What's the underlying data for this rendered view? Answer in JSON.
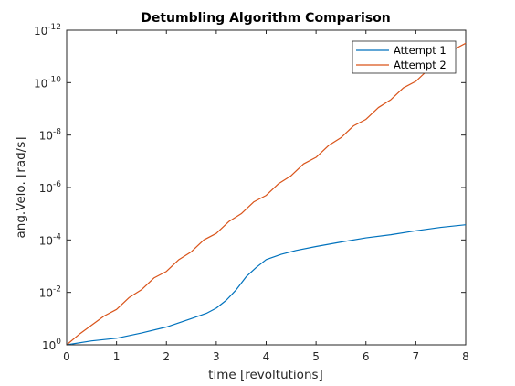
{
  "chart_data": {
    "type": "line",
    "title": "Detumbling Algorithm Comparison",
    "xlabel": "time [revoltutions]",
    "ylabel": "ang.Velo. [rad/s]",
    "xlim": [
      0,
      8
    ],
    "ylim_exp": [
      -12,
      0
    ],
    "yscale": "log",
    "grid": false,
    "legend_position": "top-right",
    "x_ticks": [
      "0",
      "1",
      "2",
      "3",
      "4",
      "5",
      "6",
      "7",
      "8"
    ],
    "y_tick_base": "10",
    "y_tick_exponents": [
      "0",
      "-2",
      "-4",
      "-6",
      "-8",
      "-10",
      "-12"
    ],
    "series": [
      {
        "name": "Attempt 1",
        "color": "#0072bd",
        "x": [
          0,
          0.5,
          1.0,
          1.5,
          2.0,
          2.5,
          2.8,
          3.0,
          3.2,
          3.4,
          3.6,
          3.8,
          4.0,
          4.3,
          4.6,
          5.0,
          5.5,
          6.0,
          6.5,
          7.0,
          7.5,
          8.0
        ],
        "y_exp": [
          0,
          -0.15,
          -0.25,
          -0.45,
          -0.68,
          -1.0,
          -1.2,
          -1.4,
          -1.7,
          -2.1,
          -2.6,
          -2.95,
          -3.25,
          -3.45,
          -3.6,
          -3.75,
          -3.92,
          -4.08,
          -4.2,
          -4.35,
          -4.48,
          -4.58
        ]
      },
      {
        "name": "Attempt 2",
        "color": "#d95319",
        "x": [
          0,
          0.25,
          0.5,
          0.75,
          1.0,
          1.25,
          1.5,
          1.75,
          2.0,
          2.25,
          2.5,
          2.75,
          3.0,
          3.25,
          3.5,
          3.75,
          4.0,
          4.25,
          4.5,
          4.75,
          5.0,
          5.25,
          5.5,
          5.75,
          6.0,
          6.25,
          6.5,
          6.75,
          7.0,
          7.25,
          7.5,
          7.75,
          8.0
        ],
        "y_exp": [
          0,
          -0.4,
          -0.75,
          -1.1,
          -1.35,
          -1.8,
          -2.1,
          -2.55,
          -2.8,
          -3.25,
          -3.55,
          -4.0,
          -4.25,
          -4.7,
          -5.0,
          -5.45,
          -5.7,
          -6.15,
          -6.45,
          -6.9,
          -7.15,
          -7.6,
          -7.9,
          -8.35,
          -8.6,
          -9.05,
          -9.35,
          -9.8,
          -10.05,
          -10.5,
          -10.8,
          -11.25,
          -11.5
        ]
      }
    ]
  }
}
